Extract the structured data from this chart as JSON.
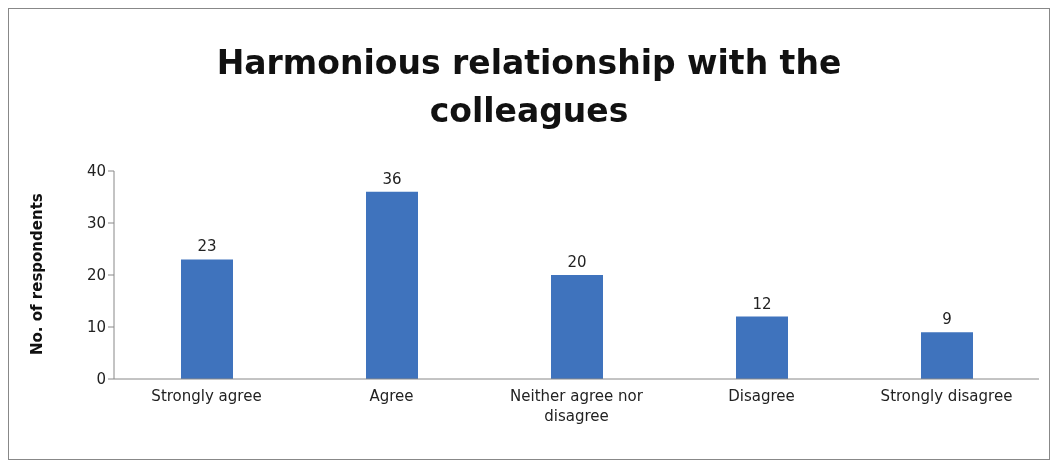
{
  "chart_data": {
    "type": "bar",
    "title": "Harmonious relationship with the colleagues",
    "ylabel": "No. of respondents",
    "categories": [
      "Strongly agree",
      "Agree",
      "Neither agree nor disagree",
      "Disagree",
      "Strongly disagree"
    ],
    "values": [
      23,
      36,
      20,
      12,
      9
    ],
    "color": "#3f73bd",
    "ylim": [
      0,
      40
    ],
    "yticks": [
      0,
      10,
      20,
      30,
      40
    ],
    "grid": false,
    "legend": false,
    "data_labels": true
  }
}
